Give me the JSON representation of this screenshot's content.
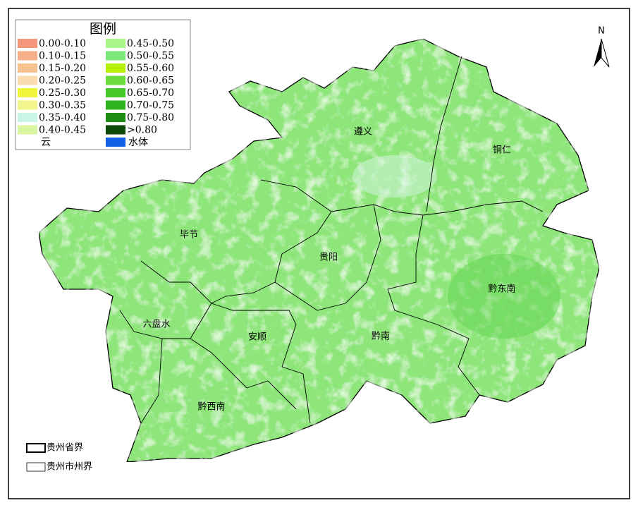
{
  "legend": {
    "title": "图例",
    "items": [
      {
        "label": "0.00-0.10",
        "color": "#f4977a"
      },
      {
        "label": "0.10-0.15",
        "color": "#f5b08a"
      },
      {
        "label": "0.15-0.20",
        "color": "#f6c28f"
      },
      {
        "label": "0.20-0.25",
        "color": "#fadcb0"
      },
      {
        "label": "0.25-0.30",
        "color": "#eef53a"
      },
      {
        "label": "0.30-0.35",
        "color": "#f2f58c"
      },
      {
        "label": "0.35-0.40",
        "color": "#c8f5e6"
      },
      {
        "label": "0.40-0.45",
        "color": "#d8f5a0"
      },
      {
        "label": "0.45-0.50",
        "color": "#a8f58a"
      },
      {
        "label": "0.50-0.55",
        "color": "#7de87a"
      },
      {
        "label": "0.55-0.60",
        "color": "#b4f000"
      },
      {
        "label": "0.60-0.65",
        "color": "#6cdc3c"
      },
      {
        "label": "0.65-0.70",
        "color": "#44c82a"
      },
      {
        "label": "0.70-0.75",
        "color": "#2db41e"
      },
      {
        "label": "0.75-0.80",
        "color": "#1e8c14"
      },
      {
        "label": ">0.80",
        "color": "#0a4a0a"
      }
    ],
    "cloud": {
      "label": "云",
      "color": "#ffffff"
    },
    "water": {
      "label": "水体",
      "color": "#1460e6"
    }
  },
  "north": "N",
  "regions": [
    "遵义",
    "铜仁",
    "毕节",
    "贵阳",
    "黔东南",
    "六盘水",
    "安顺",
    "黔南",
    "黔西南"
  ],
  "boundaries": {
    "province": "贵州省界",
    "city": "贵州市州界"
  }
}
